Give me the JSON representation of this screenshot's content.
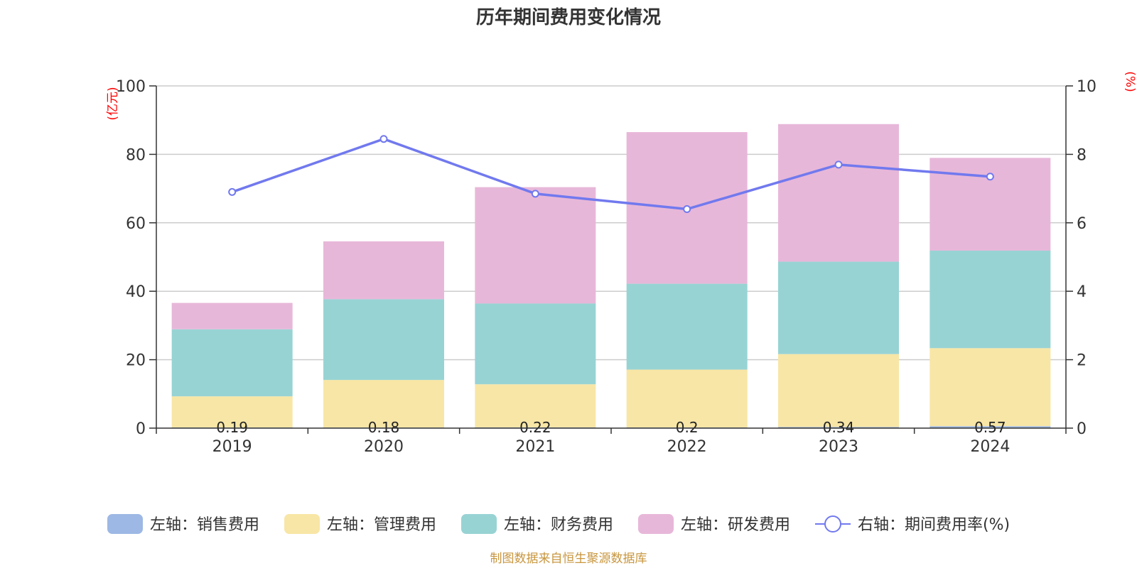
{
  "title": "历年期间费用变化情况",
  "source": "制图数据来自恒生聚源数据库",
  "chart_data": {
    "type": "bar",
    "stacked": true,
    "categories": [
      "2019",
      "2020",
      "2021",
      "2022",
      "2023",
      "2024"
    ],
    "left_axis": {
      "unit": "(亿元)",
      "ylim": [
        0,
        100
      ],
      "ticks": [
        0,
        20,
        40,
        60,
        80,
        100
      ]
    },
    "right_axis": {
      "unit": "(%)",
      "ylim": [
        0,
        10
      ],
      "ticks": [
        0,
        2,
        4,
        6,
        8,
        10
      ]
    },
    "series": [
      {
        "name": "左轴：销售费用",
        "axis": "left",
        "type": "bar",
        "color": "#9db8e4",
        "values": [
          0.19,
          0.18,
          0.22,
          0.2,
          0.34,
          0.57
        ],
        "labels": [
          "0.19",
          "0.18",
          "0.22",
          "0.2",
          "0.34",
          "0.57"
        ]
      },
      {
        "name": "左轴：管理费用",
        "axis": "left",
        "type": "bar",
        "color": "#f8e6a6",
        "values": [
          9.1,
          13.9,
          12.6,
          16.9,
          21.3,
          22.8
        ]
      },
      {
        "name": "左轴：财务费用",
        "axis": "left",
        "type": "bar",
        "color": "#98d3d4",
        "values": [
          19.6,
          23.6,
          23.6,
          25.1,
          27.0,
          28.5
        ]
      },
      {
        "name": "左轴：研发费用",
        "axis": "left",
        "type": "bar",
        "color": "#e7b7d9",
        "values": [
          7.7,
          16.9,
          34.0,
          44.3,
          40.2,
          27.1
        ]
      },
      {
        "name": "右轴：期间费用率(%)",
        "axis": "right",
        "type": "line",
        "color": "#7179ee",
        "values": [
          6.9,
          8.45,
          6.85,
          6.4,
          7.7,
          7.35
        ]
      }
    ],
    "grid": true,
    "legend_position": "bottom"
  }
}
